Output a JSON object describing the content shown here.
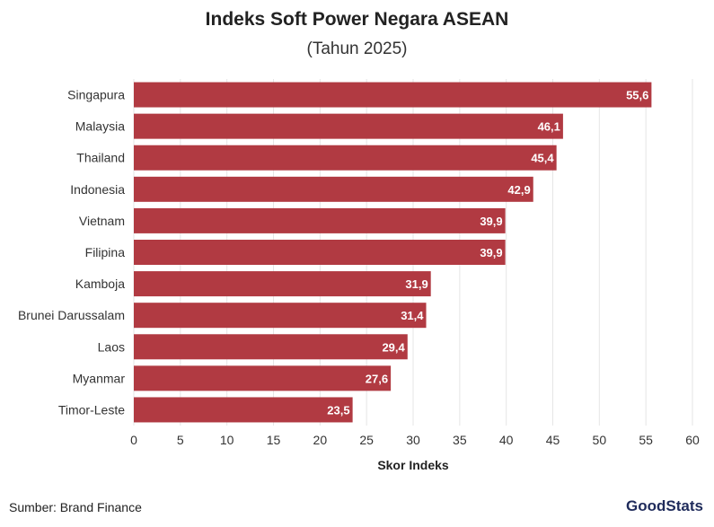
{
  "chart_data": {
    "type": "bar",
    "orientation": "horizontal",
    "title": "Indeks Soft Power Negara ASEAN",
    "subtitle": "(Tahun 2025)",
    "xlabel": "Skor Indeks",
    "ylabel": "",
    "categories": [
      "Singapura",
      "Malaysia",
      "Thailand",
      "Indonesia",
      "Vietnam",
      "Filipina",
      "Kamboja",
      "Brunei Darussalam",
      "Laos",
      "Myanmar",
      "Timor-Leste"
    ],
    "values": [
      55.6,
      46.1,
      45.4,
      42.9,
      39.9,
      39.9,
      31.9,
      31.4,
      29.4,
      27.6,
      23.5
    ],
    "value_labels": [
      "55,6",
      "46,1",
      "45,4",
      "42,9",
      "39,9",
      "39,9",
      "31,9",
      "31,4",
      "29,4",
      "27,6",
      "23,5"
    ],
    "xlim": [
      0,
      60
    ],
    "xticks": [
      "0",
      "5",
      "10",
      "15",
      "20",
      "25",
      "30",
      "35",
      "40",
      "45",
      "50",
      "55",
      "60"
    ],
    "grid": true,
    "bar_color": "#b13a42"
  },
  "footer": {
    "source": "Sumber: Brand Finance",
    "logo_text": "GoodStats"
  }
}
